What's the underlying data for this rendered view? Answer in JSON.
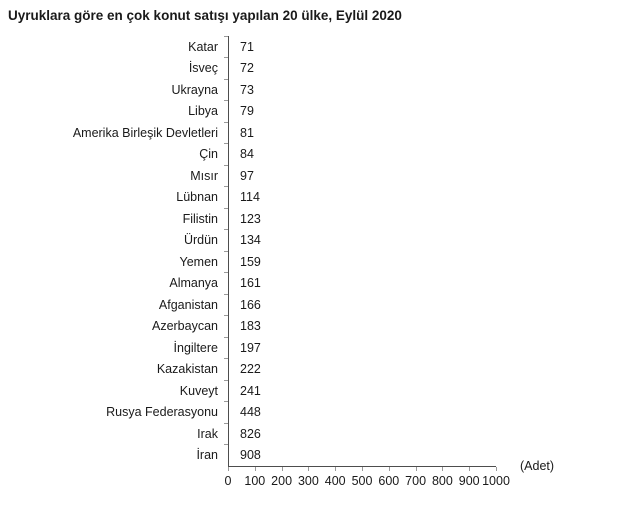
{
  "title": "Uyruklara göre en çok konut satışı yapılan 20 ülke, Eylül 2020",
  "chart_data": {
    "type": "bar",
    "orientation": "horizontal",
    "title": "Uyruklara göre en çok konut satışı yapılan 20 ülke, Eylül 2020",
    "unit_label": "(Adet)",
    "xlabel": "",
    "ylabel": "",
    "xlim": [
      0,
      1000
    ],
    "xticks": [
      0,
      100,
      200,
      300,
      400,
      500,
      600,
      700,
      800,
      900,
      1000
    ],
    "grid": false,
    "legend": false,
    "bar_color": "#1c75b8",
    "categories": [
      "Katar",
      "İsveç",
      "Ukrayna",
      "Libya",
      "Amerika Birleşik Devletleri",
      "Çin",
      "Mısır",
      "Lübnan",
      "Filistin",
      "Ürdün",
      "Yemen",
      "Almanya",
      "Afganistan",
      "Azerbaycan",
      "İngiltere",
      "Kazakistan",
      "Kuveyt",
      "Rusya Federasyonu",
      "Irak",
      "İran"
    ],
    "values": [
      71,
      72,
      73,
      79,
      81,
      84,
      97,
      114,
      123,
      134,
      159,
      161,
      166,
      183,
      197,
      222,
      241,
      448,
      826,
      908
    ]
  }
}
